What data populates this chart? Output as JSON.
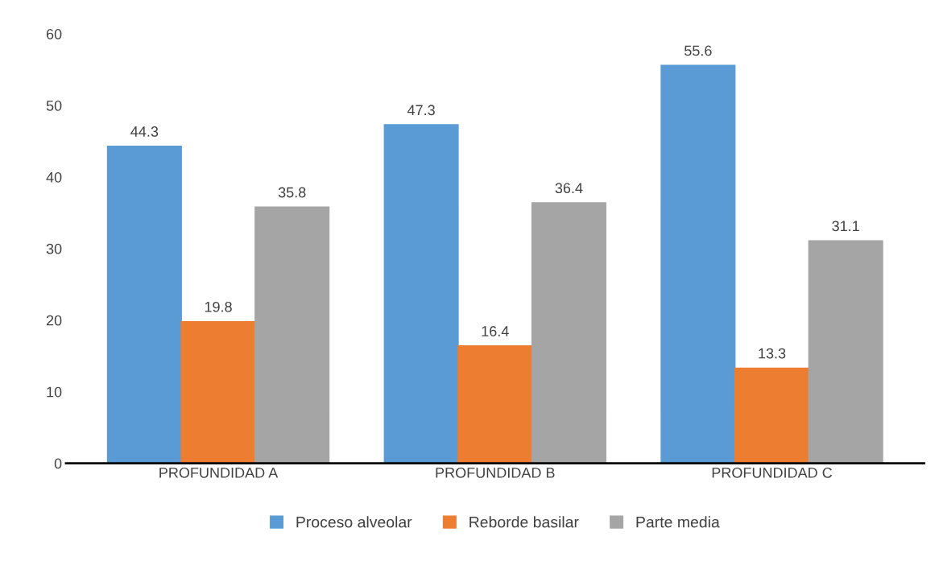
{
  "chart_data": {
    "type": "bar",
    "categories": [
      "PROFUNDIDAD A",
      "PROFUNDIDAD B",
      "PROFUNDIDAD C"
    ],
    "series": [
      {
        "name": "Proceso alveolar",
        "color": "#5b9bd5",
        "values": [
          44.3,
          47.3,
          55.6
        ]
      },
      {
        "name": "Reborde basilar",
        "color": "#ed7d31",
        "values": [
          19.8,
          16.4,
          13.3
        ]
      },
      {
        "name": "Parte media",
        "color": "#a5a5a5",
        "values": [
          35.8,
          36.4,
          31.1
        ]
      }
    ],
    "ylim": [
      0,
      60
    ],
    "yticks": [
      0,
      10,
      20,
      30,
      40,
      50,
      60
    ],
    "data_labels": true,
    "grid": false,
    "legend": "bottom"
  }
}
